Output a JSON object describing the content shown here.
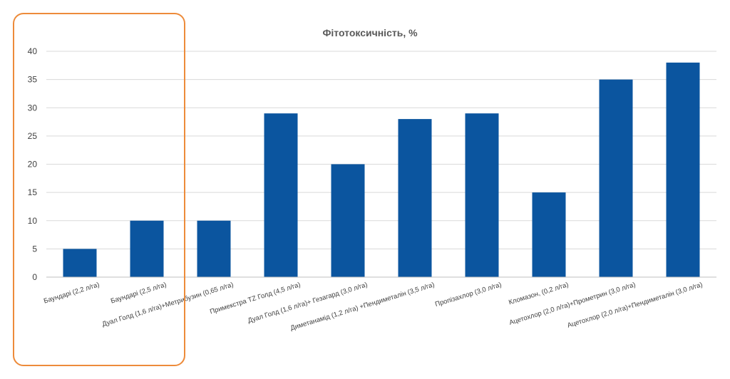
{
  "chart_data": {
    "type": "bar",
    "title": "Фітотоксичність, %",
    "xlabel": "",
    "ylabel": "",
    "ylim": [
      0,
      40
    ],
    "yticks": [
      0,
      5,
      10,
      15,
      20,
      25,
      30,
      35,
      40
    ],
    "grid": true,
    "categories": [
      "Баундарі (2,2 л/га)",
      "Баундарі (2,5 л/га)",
      "Дуал Голд (1,6 л/га)+Метрибузин (0,65 л/га)",
      "Примекстра TZ Голд (4,5 л/га)",
      "Дуал Голд (1,6 л/га)+ Гезагард (3,0 л/га)",
      "Диметанамід (1,2 л/га) +Пендиметалін (3,5 л/га)",
      "Пропізахлор (3,0 л/га)",
      "Кломазон, (0,2 л/га)",
      "Ацетохлор (2,0 л/га)+Прометрин (3,0 л/га)",
      "Ацетохлор (2,0 л/га)+Пендиметалін (3,0 л/га)"
    ],
    "values": [
      5,
      10,
      10,
      29,
      20,
      28,
      29,
      15,
      35,
      38
    ],
    "bar_color": "#0b559f",
    "highlight_color": "#ed8b3a",
    "highlighted_categories": [
      "Баундарі (2,2 л/га)",
      "Баундарі (2,5 л/га)"
    ]
  }
}
